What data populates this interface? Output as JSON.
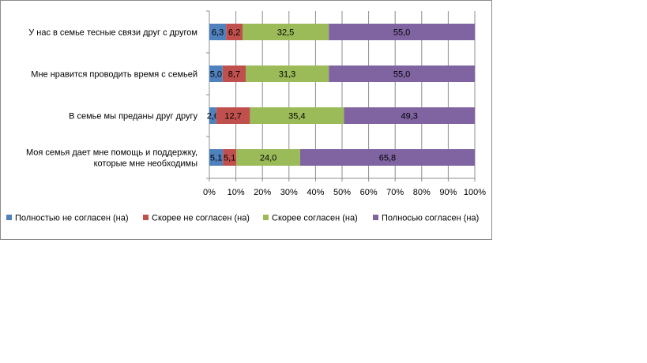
{
  "chart_data": {
    "type": "bar",
    "orientation": "horizontal",
    "stacked": "percent",
    "categories": [
      "У нас в семье тесные связи друг с другом",
      "Мне нравится проводить время с семьей",
      "В семье мы преданы друг другу",
      "Моя семья дает мне помощь и поддержку, которые мне необходимы"
    ],
    "category_lines": [
      [
        "У нас в семье тесные связи друг с другом"
      ],
      [
        "Мне нравится проводить время с семьей"
      ],
      [
        "В семье мы преданы друг другу"
      ],
      [
        "Моя семья дает мне помощь и поддержку,",
        "которые мне необходимы"
      ]
    ],
    "series": [
      {
        "name": "Полностью не согласен (на)",
        "color": "#4F81BD",
        "values": [
          6.3,
          5.0,
          2.6,
          5.1
        ],
        "labels": [
          "6,3",
          "5,0",
          "2,6",
          "5,1"
        ]
      },
      {
        "name": "Скорее  не согласен (на)",
        "color": "#C0504D",
        "values": [
          6.2,
          8.7,
          12.7,
          5.1
        ],
        "labels": [
          "6,2",
          "8,7",
          "12,7",
          "5,1"
        ]
      },
      {
        "name": "Скорее  согласен (на)",
        "color": "#9BBB59",
        "values": [
          32.5,
          31.3,
          35.4,
          24.0
        ],
        "labels": [
          "32,5",
          "31,3",
          "35,4",
          "24,0"
        ]
      },
      {
        "name": "Полносью согласен (на)",
        "color": "#8064A2",
        "values": [
          55.0,
          55.0,
          49.3,
          65.8
        ],
        "labels": [
          "55,0",
          "55,0",
          "49,3",
          "65,8"
        ]
      }
    ],
    "x_ticks": [
      "0%",
      "10%",
      "20%",
      "30%",
      "40%",
      "50%",
      "60%",
      "70%",
      "80%",
      "90%",
      "100%"
    ],
    "xlim": [
      0,
      100
    ],
    "grid": true,
    "legend_position": "bottom"
  }
}
